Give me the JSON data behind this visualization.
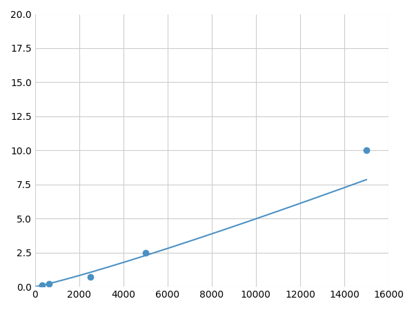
{
  "x_points": [
    156,
    312,
    625,
    1250,
    2500,
    5000,
    15000
  ],
  "y_points": [
    0.06,
    0.1,
    0.2,
    0.45,
    0.7,
    2.5,
    10.0
  ],
  "marker_x": [
    312,
    625,
    2500,
    5000,
    15000
  ],
  "marker_y": [
    0.1,
    0.2,
    0.7,
    2.5,
    10.0
  ],
  "line_color": "#4a90c4",
  "marker_color": "#4a90c4",
  "marker_size": 6,
  "xlim": [
    0,
    16000
  ],
  "ylim": [
    0,
    20
  ],
  "xticks": [
    0,
    2000,
    4000,
    6000,
    8000,
    10000,
    12000,
    14000,
    16000
  ],
  "yticks": [
    0.0,
    2.5,
    5.0,
    7.5,
    10.0,
    12.5,
    15.0,
    17.5,
    20.0
  ],
  "grid": true,
  "background_color": "#ffffff"
}
